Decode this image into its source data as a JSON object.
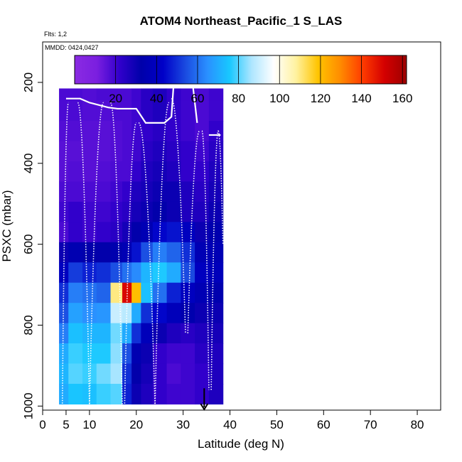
{
  "chart_data": {
    "type": "heatmap",
    "title": "ATOM4 Northeast_Pacific_1 S_LAS",
    "info_lines": [
      "Flts: 1,2",
      "MMDD: 0424,0427"
    ],
    "xlabel": "Latitude (deg N)",
    "ylabel": "PSXC (mbar)",
    "xlim": [
      0,
      85
    ],
    "ylim": [
      1010,
      100
    ],
    "x_ticks": [
      0,
      5,
      10,
      20,
      30,
      40,
      50,
      60,
      70,
      80
    ],
    "y_ticks": [
      200,
      400,
      600,
      800,
      1000
    ],
    "colorbar": {
      "ticks": [
        20,
        40,
        60,
        80,
        100,
        120,
        140,
        160
      ],
      "range": [
        0,
        162
      ],
      "stops": [
        "#8a2be2",
        "#7b1fe0",
        "#3300cc",
        "#0000aa",
        "#0000c8",
        "#1a4ae0",
        "#2a90ff",
        "#18c8ff",
        "#aee6ff",
        "#ffffff",
        "#fff2a0",
        "#ffc400",
        "#ff8c00",
        "#ff3c00",
        "#d40000",
        "#9c0000"
      ]
    },
    "tracks": [
      {
        "name": "columns",
        "values": [
          {
            "x": 4,
            "values": [
              18,
              18,
              17,
              16,
              16,
              18,
              20,
              18,
              30,
              40,
              50,
              55,
              62,
              70,
              72,
              70,
              60
            ]
          },
          {
            "x": 7,
            "values": [
              18,
              18,
              17,
              16,
              17,
              18,
              22,
              22,
              35,
              52,
              62,
              68,
              74,
              78,
              80,
              75,
              65
            ]
          },
          {
            "x": 10,
            "values": [
              17,
              17,
              16,
              16,
              16,
              18,
              20,
              20,
              32,
              48,
              60,
              65,
              72,
              76,
              78,
              74,
              62
            ]
          },
          {
            "x": 13,
            "values": [
              18,
              17,
              16,
              16,
              17,
              18,
              20,
              22,
              32,
              50,
              58,
              66,
              72,
              76,
              82,
              78,
              64
            ]
          },
          {
            "x": 16,
            "values": [
              18,
              18,
              17,
              17,
              18,
              20,
              22,
              24,
              34,
              55,
              110,
              90,
              82,
              84,
              86,
              80,
              62
            ]
          },
          {
            "x": 18,
            "values": [
              18,
              18,
              18,
              18,
              18,
              22,
              24,
              28,
              36,
              60,
              150,
              88,
              70,
              55,
              50,
              48,
              40
            ]
          },
          {
            "x": 20,
            "values": [
              20,
              20,
              20,
              20,
              22,
              26,
              28,
              32,
              46,
              64,
              120,
              70,
              50,
              35,
              32,
              30,
              30
            ]
          },
          {
            "x": 22,
            "values": [
              24,
              24,
              22,
              24,
              26,
              28,
              30,
              36,
              55,
              72,
              74,
              50,
              38,
              30,
              28,
              26,
              28
            ]
          },
          {
            "x": 25,
            "values": [
              26,
              26,
              24,
              26,
              28,
              30,
              32,
              44,
              62,
              76,
              60,
              44,
              30,
              22,
              22,
              22,
              20
            ]
          },
          {
            "x": 28,
            "values": [
              22,
              22,
              22,
              24,
              26,
              30,
              30,
              46,
              58,
              70,
              48,
              38,
              26,
              20,
              18,
              20,
              18
            ]
          },
          {
            "x": 31,
            "values": [
              20,
              20,
              20,
              22,
              22,
              26,
              26,
              40,
              50,
              54,
              40,
              34,
              24,
              20,
              20,
              20,
              20
            ]
          },
          {
            "x": 34,
            "values": [
              18,
              18,
              18,
              20,
              22,
              24,
              26,
              30,
              36,
              40,
              36,
              30,
              26,
              24,
              22,
              22,
              22
            ]
          },
          {
            "x": 37,
            "values": [
              20,
              20,
              22,
              24,
              26,
              28,
              30,
              34,
              36,
              38,
              34,
              30,
              28,
              26,
              26,
              26,
              26
            ]
          }
        ]
      },
      {
        "name": "flight track"
      },
      {
        "name": "highlight marker",
        "x": 34.5,
        "pressure": 1000
      }
    ]
  }
}
